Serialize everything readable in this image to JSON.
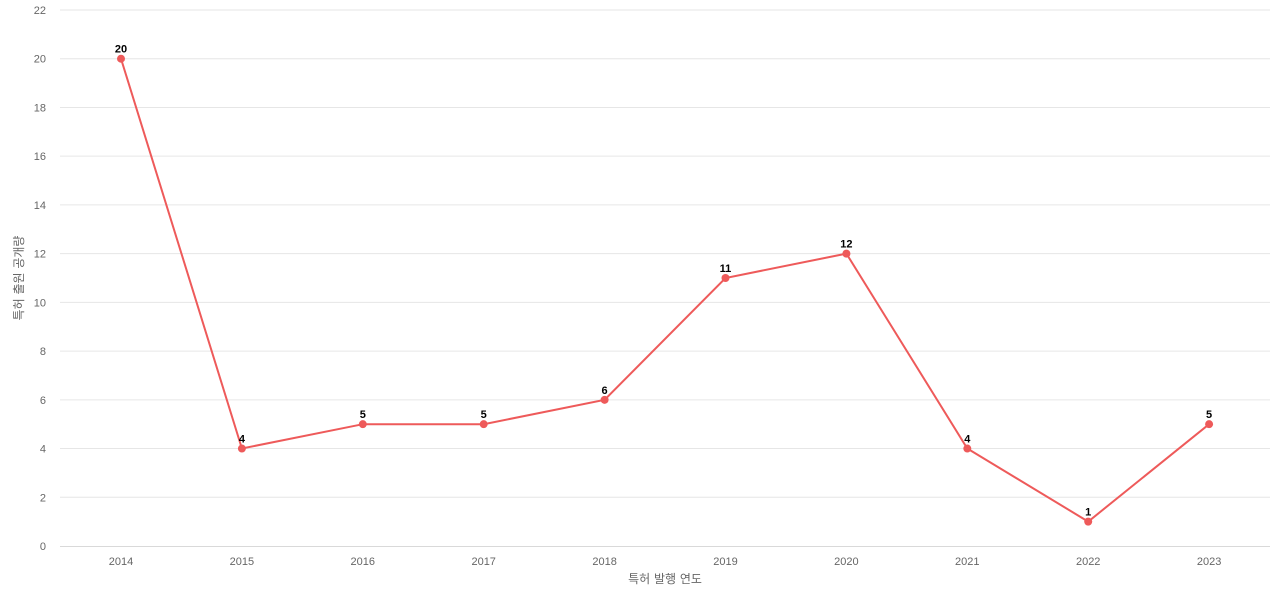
{
  "chart_data": {
    "type": "line",
    "title": "",
    "xlabel": "특허 발행 연도",
    "ylabel": "특허 출원 공개량",
    "categories": [
      "2014",
      "2015",
      "2016",
      "2017",
      "2018",
      "2019",
      "2020",
      "2021",
      "2022",
      "2023"
    ],
    "series": [
      {
        "values": [
          20,
          4,
          5,
          5,
          6,
          11,
          12,
          4,
          1,
          5
        ],
        "color": "#ee5a5a"
      }
    ],
    "ylim": [
      0,
      22
    ],
    "yticks": [
      0,
      2,
      4,
      6,
      8,
      10,
      12,
      14,
      16,
      18,
      20,
      22
    ],
    "grid": true,
    "data_labels": true,
    "legend": "none"
  }
}
